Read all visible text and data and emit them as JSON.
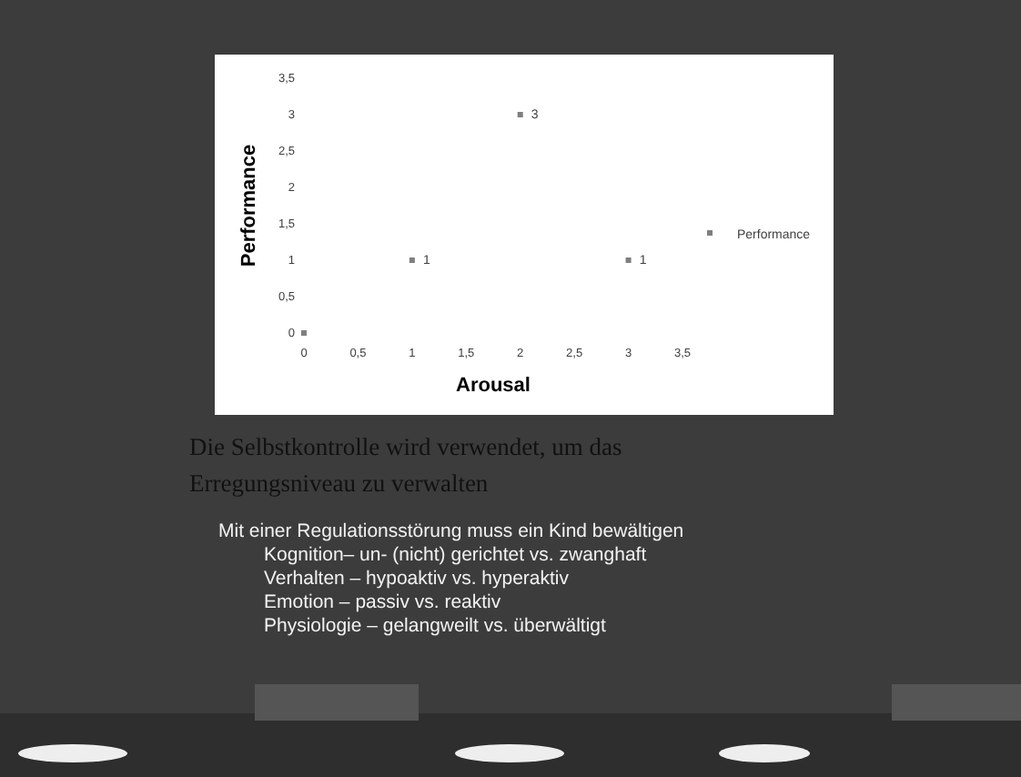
{
  "chart_data": {
    "type": "scatter",
    "xlabel": "Arousal",
    "ylabel": "Performance",
    "x": [
      0,
      1,
      2,
      3
    ],
    "series": [
      {
        "name": "Performance",
        "color": "#7f7f7f",
        "values": [
          0,
          1,
          3,
          1
        ],
        "value_labels": [
          null,
          "1",
          "3",
          "1"
        ]
      }
    ],
    "xlim": [
      0,
      3.5
    ],
    "xticks": [
      {
        "value": 0,
        "label": "0"
      },
      {
        "value": 0.5,
        "label": "0,5"
      },
      {
        "value": 1,
        "label": "1"
      },
      {
        "value": 1.5,
        "label": "1,5"
      },
      {
        "value": 2,
        "label": "2"
      },
      {
        "value": 2.5,
        "label": "2,5"
      },
      {
        "value": 3,
        "label": "3"
      },
      {
        "value": 3.5,
        "label": "3,5"
      }
    ],
    "ylim": [
      0,
      3.5
    ],
    "yticks": [
      {
        "value": 0,
        "label": "0"
      },
      {
        "value": 0.5,
        "label": "0,5"
      },
      {
        "value": 1,
        "label": "1"
      },
      {
        "value": 1.5,
        "label": "1,5"
      },
      {
        "value": 2,
        "label": "2"
      },
      {
        "value": 2.5,
        "label": "2,5"
      },
      {
        "value": 3,
        "label": "3"
      },
      {
        "value": 3.5,
        "label": "3,5"
      }
    ],
    "marker": "square",
    "legend": "right",
    "grid": false,
    "annotations": [
      "Die Selbstkontrolle wird verwendet, um das",
      "Erregungsniveau zu verwalten",
      "Mit einer Regulationsstörung  muss  ein  Kind  bewältigen",
      "Kognition–  un- (nicht) gerichtet  vs. zwanghaft",
      "Verhalten – hypoaktiv vs. hyperaktiv",
      "Emotion – passiv vs. reaktiv",
      "Physiologie – gelangweilt  vs.  überwältigt"
    ]
  }
}
